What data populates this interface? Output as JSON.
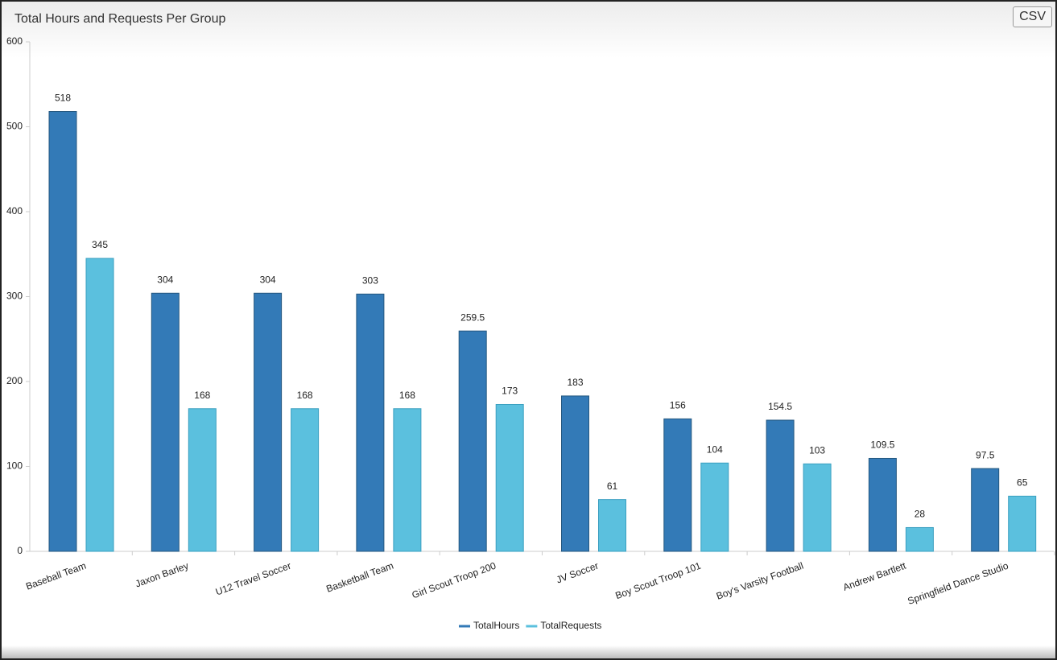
{
  "export_button": "CSV",
  "chart_data": {
    "type": "bar",
    "title": "Total Hours and Requests Per Group",
    "categories": [
      "Baseball Team",
      "Jaxon Barley",
      "U12 Travel Soccer",
      "Basketball Team",
      "Girl Scout Troop 200",
      "JV Soccer",
      "Boy Scout Troop 101",
      "Boy's Varsity Football",
      "Andrew Bartlett",
      "Springfield Dance Studio"
    ],
    "series": [
      {
        "name": "TotalHours",
        "color": "#337ab7",
        "values": [
          518,
          304,
          304,
          303,
          259.5,
          183,
          156,
          154.5,
          109.5,
          97.5
        ]
      },
      {
        "name": "TotalRequests",
        "color": "#5bc0de",
        "values": [
          345,
          168,
          168,
          168,
          173,
          61,
          104,
          103,
          28,
          65
        ]
      }
    ],
    "ylim": [
      0,
      600
    ],
    "yticks": [
      0,
      100,
      200,
      300,
      400,
      500,
      600
    ],
    "grid": false,
    "legend": "bottom"
  }
}
